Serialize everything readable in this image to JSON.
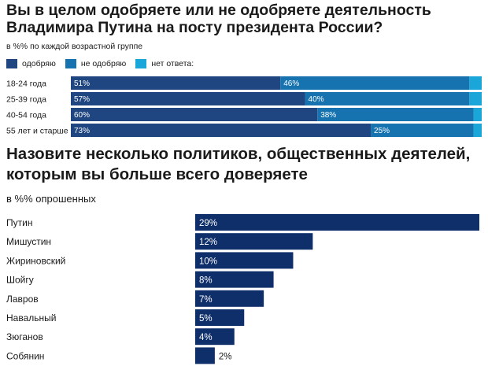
{
  "charts": {
    "approval": {
      "title": "Вы в целом одобряете или не одобряете деятельность Владимира Путина на посту президента России?",
      "subtitle": "в %% по каждой возрастной группе"
    },
    "trust": {
      "title": "Назовите несколько политиков, общественных деятелей, которым вы больше всего доверяете",
      "subtitle": "в %% опрошенных"
    }
  },
  "colors": {
    "approve": "#1f4680",
    "disapprove": "#1673b0",
    "no_answer": "#1aa6d9",
    "trust_bar": "#0f2f6b",
    "row_separator": "#ffffff"
  },
  "chart_data": [
    {
      "type": "bar",
      "orientation": "horizontal",
      "stacked": true,
      "title": "Вы в целом одобряете или не одобряете деятельность Владимира Путина на посту президента России?",
      "subtitle": "в %% по каждой возрастной группе",
      "legend_position": "top-left",
      "categories": [
        "18-24 года",
        "25-39 года",
        "40-54 года",
        "55 лет и старше"
      ],
      "series": [
        {
          "name": "одобряю",
          "values": [
            51,
            57,
            60,
            73
          ],
          "labels": [
            "51%",
            "57%",
            "60%",
            "73%"
          ]
        },
        {
          "name": "не одобряю",
          "values": [
            46,
            40,
            38,
            25
          ],
          "labels": [
            "46%",
            "40%",
            "38%",
            "25%"
          ]
        },
        {
          "name": "нет ответа:",
          "values": [
            3,
            3,
            2,
            2
          ]
        }
      ],
      "xlim": [
        0,
        100
      ]
    },
    {
      "type": "bar",
      "orientation": "horizontal",
      "title": "Назовите несколько политиков, общественных деятелей, которым вы больше всего доверяете",
      "subtitle": "в %% опрошенных",
      "categories": [
        "Путин",
        "Мишустин",
        "Жириновский",
        "Шойгу",
        "Лавров",
        "Навальный",
        "Зюганов",
        "Собянин"
      ],
      "values": [
        29,
        12,
        10,
        8,
        7,
        5,
        4,
        2
      ],
      "labels": [
        "29%",
        "12%",
        "10%",
        "8%",
        "7%",
        "5%",
        "4%",
        "2%"
      ],
      "xlim": [
        0,
        29
      ]
    }
  ]
}
